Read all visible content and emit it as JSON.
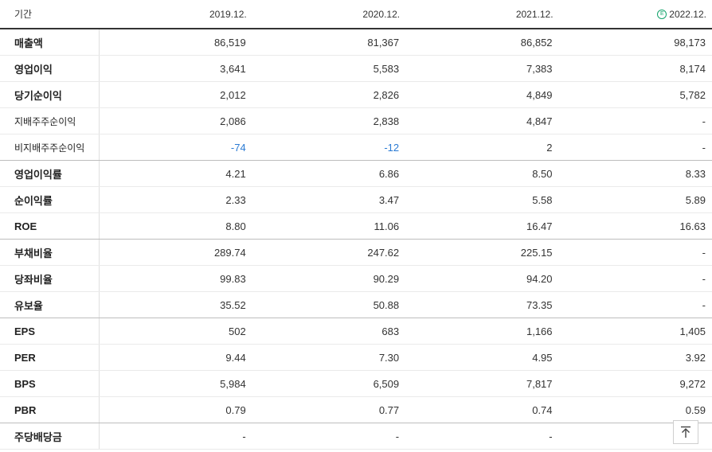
{
  "header": {
    "label": "기간",
    "periods": [
      "2019.12.",
      "2020.12.",
      "2021.12.",
      "2022.12."
    ],
    "estimate_icon": "E"
  },
  "rows": [
    {
      "label": "매출액",
      "values": [
        "86,519",
        "81,367",
        "86,852",
        "98,173"
      ]
    },
    {
      "label": "영업이익",
      "values": [
        "3,641",
        "5,583",
        "7,383",
        "8,174"
      ]
    },
    {
      "label": "당기순이익",
      "values": [
        "2,012",
        "2,826",
        "4,849",
        "5,782"
      ]
    },
    {
      "label": "지배주주순이익",
      "values": [
        "2,086",
        "2,838",
        "4,847",
        "-"
      ]
    },
    {
      "label": "비지배주주순이익",
      "values": [
        "-74",
        "-12",
        "2",
        "-"
      ]
    },
    {
      "label": "영업이익률",
      "values": [
        "4.21",
        "6.86",
        "8.50",
        "8.33"
      ]
    },
    {
      "label": "순이익률",
      "values": [
        "2.33",
        "3.47",
        "5.58",
        "5.89"
      ]
    },
    {
      "label": "ROE",
      "values": [
        "8.80",
        "11.06",
        "16.47",
        "16.63"
      ]
    },
    {
      "label": "부채비율",
      "values": [
        "289.74",
        "247.62",
        "225.15",
        "-"
      ]
    },
    {
      "label": "당좌비율",
      "values": [
        "99.83",
        "90.29",
        "94.20",
        "-"
      ]
    },
    {
      "label": "유보율",
      "values": [
        "35.52",
        "50.88",
        "73.35",
        "-"
      ]
    },
    {
      "label": "EPS",
      "values": [
        "502",
        "683",
        "1,166",
        "1,405"
      ]
    },
    {
      "label": "PER",
      "values": [
        "9.44",
        "7.30",
        "4.95",
        "3.92"
      ]
    },
    {
      "label": "BPS",
      "values": [
        "5,984",
        "6,509",
        "7,817",
        "9,272"
      ]
    },
    {
      "label": "PBR",
      "values": [
        "0.79",
        "0.77",
        "0.74",
        "0.59"
      ]
    },
    {
      "label": "주당배당금",
      "values": [
        "-",
        "-",
        "-",
        ""
      ]
    }
  ],
  "colors": {
    "negative": "#2b7bd4",
    "estimate": "#12a36b"
  },
  "icons": {
    "scroll_top": "arrow-up-icon",
    "estimate": "estimate-icon"
  }
}
